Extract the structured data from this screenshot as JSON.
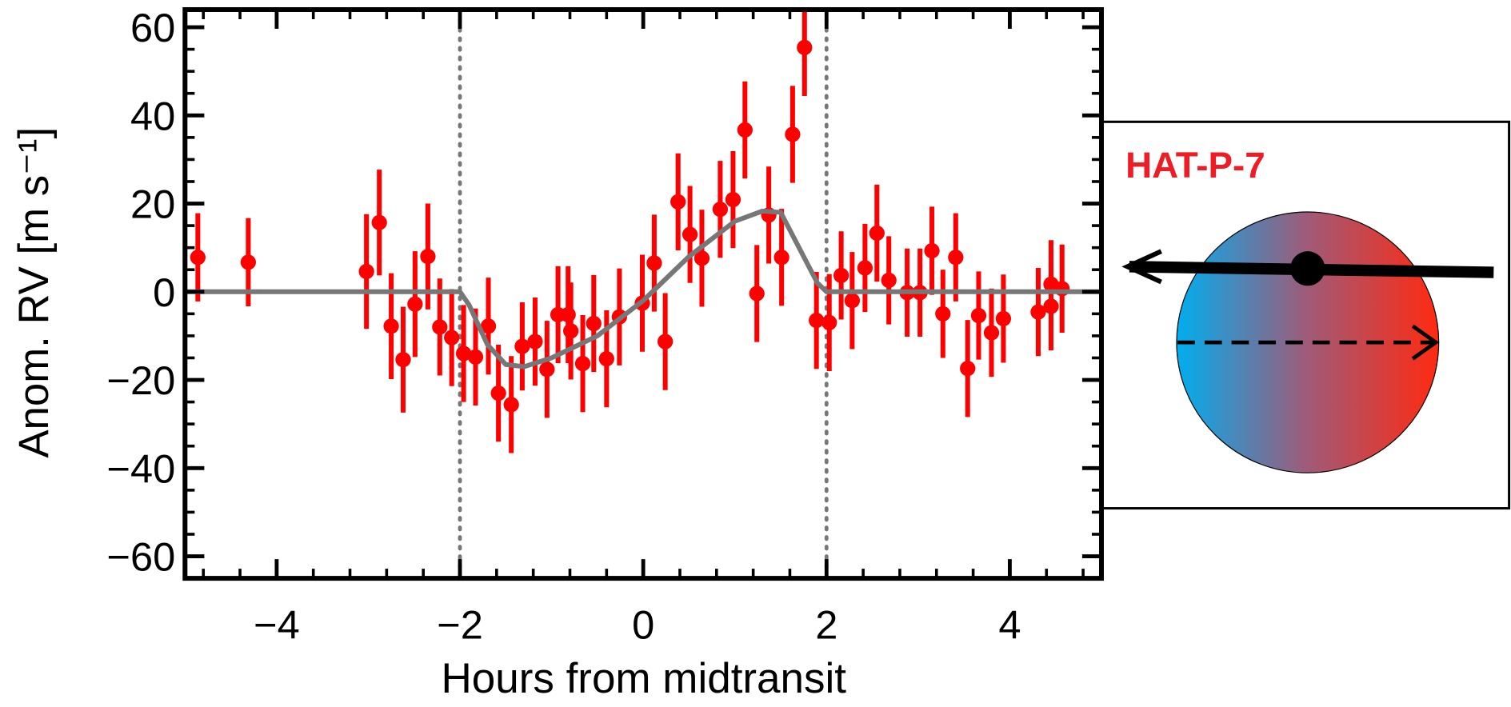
{
  "chart_data": {
    "type": "scatter",
    "xlabel": "Hours from midtransit",
    "ylabel": "Anom. RV [m s⁻¹]",
    "xlim": [
      -5,
      5
    ],
    "ylim": [
      -65,
      64
    ],
    "xticks": [
      {
        "value": -4,
        "label": "−4"
      },
      {
        "value": -2,
        "label": "−2"
      },
      0,
      2,
      {
        "value": 4,
        "label": "4"
      }
    ],
    "yticks": [
      {
        "value": -60,
        "label": "−60"
      },
      {
        "value": -40,
        "label": "−40"
      },
      {
        "value": -20,
        "label": "−20"
      },
      0,
      20,
      40,
      60
    ],
    "xminor": 0.4,
    "yminor": 5,
    "vlines": [
      -2,
      2
    ],
    "inset_label": "HAT-P-7",
    "series": [
      {
        "color": "#ff0000",
        "x": [
          -4.86,
          -4.31,
          -3.02,
          -2.88,
          -2.75,
          -2.62,
          -2.49,
          -2.35,
          -2.22,
          -2.09,
          -1.96,
          -1.83,
          -1.69,
          -1.58,
          -1.44,
          -1.32,
          -1.18,
          -1.05,
          -0.93,
          -0.82,
          -0.79,
          -0.66,
          -0.54,
          -0.4,
          -0.26,
          -0.01,
          0.12,
          0.24,
          0.38,
          0.51,
          0.64,
          0.84,
          0.98,
          1.11,
          1.24,
          1.37,
          1.51,
          1.63,
          1.76,
          1.89,
          2.03,
          2.16,
          2.28,
          2.42,
          2.55,
          2.68,
          2.88,
          3.02,
          3.15,
          3.27,
          3.41,
          3.54,
          3.66,
          3.8,
          3.93,
          4.31,
          4.45,
          4.45,
          4.57
        ],
        "values": [
          7.8,
          6.7,
          4.6,
          15.7,
          -7.8,
          -15.4,
          -2.8,
          8,
          -8,
          -10.4,
          -14,
          -14.8,
          -7.8,
          -23,
          -25.6,
          -12.4,
          -11.3,
          -17.6,
          -5.2,
          -5.2,
          -8.9,
          -16.3,
          -7.2,
          -15.2,
          -5.7,
          -2.6,
          6.5,
          -11.3,
          20.4,
          13,
          7.6,
          18.7,
          20.9,
          36.7,
          -0.4,
          17.4,
          7.8,
          35.7,
          55.4,
          -6.5,
          -7,
          3.7,
          -2,
          5.4,
          13.3,
          2.6,
          -0.2,
          -0.2,
          9.3,
          -5,
          7.8,
          -17.4,
          -5.4,
          -9.3,
          -6.1,
          -4.6,
          1.7,
          -3.3,
          0.7
        ],
        "errors": [
          10,
          10,
          13,
          12,
          12,
          12,
          12,
          12,
          11,
          11,
          11,
          11,
          11,
          11,
          11,
          10,
          10,
          11,
          11,
          11,
          11,
          11,
          11,
          11,
          11,
          11,
          11,
          11,
          11,
          11,
          11,
          11,
          11,
          11,
          11,
          11,
          11,
          11,
          11,
          11,
          11,
          10,
          11,
          10,
          11,
          10,
          10,
          10,
          10,
          10,
          10,
          11,
          10,
          10,
          10,
          10,
          10,
          10,
          10
        ]
      },
      {
        "color": "#777777",
        "style": "line",
        "x": [
          -5,
          -2,
          -1.9,
          -1.7,
          -1.5,
          -1.3,
          -1,
          -0.5,
          0,
          0.5,
          1,
          1.3,
          1.5,
          1.7,
          1.9,
          2,
          5
        ],
        "values": [
          0,
          0,
          -3,
          -12,
          -16.5,
          -17,
          -15,
          -10,
          -2,
          8,
          16,
          18.3,
          18,
          10,
          2,
          0,
          0
        ]
      }
    ]
  }
}
